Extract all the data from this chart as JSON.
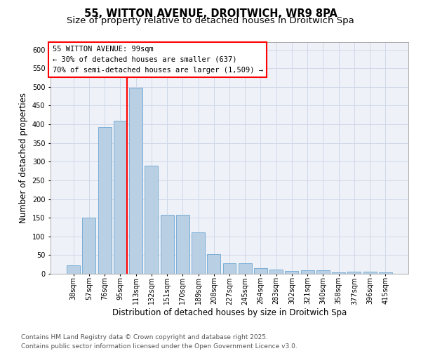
{
  "title_line1": "55, WITTON AVENUE, DROITWICH, WR9 8PA",
  "title_line2": "Size of property relative to detached houses in Droitwich Spa",
  "xlabel": "Distribution of detached houses by size in Droitwich Spa",
  "ylabel": "Number of detached properties",
  "categories": [
    "38sqm",
    "57sqm",
    "76sqm",
    "95sqm",
    "113sqm",
    "132sqm",
    "151sqm",
    "170sqm",
    "189sqm",
    "208sqm",
    "227sqm",
    "245sqm",
    "264sqm",
    "283sqm",
    "302sqm",
    "321sqm",
    "340sqm",
    "358sqm",
    "377sqm",
    "396sqm",
    "415sqm"
  ],
  "values": [
    22,
    150,
    393,
    410,
    498,
    290,
    158,
    158,
    110,
    53,
    28,
    28,
    15,
    11,
    7,
    9,
    10,
    4,
    6,
    5,
    4
  ],
  "bar_color": "#b8cfe4",
  "bar_edge_color": "#7aaed6",
  "grid_color": "#d0d8e8",
  "background_color": "#eef2f8",
  "annotation_text": "55 WITTON AVENUE: 99sqm\n← 30% of detached houses are smaller (637)\n70% of semi-detached houses are larger (1,509) →",
  "vline_color": "red",
  "annotation_box_color": "white",
  "annotation_box_edge": "red",
  "ylim": [
    0,
    620
  ],
  "yticks": [
    0,
    50,
    100,
    150,
    200,
    250,
    300,
    350,
    400,
    450,
    500,
    550,
    600
  ],
  "footer_text": "Contains HM Land Registry data © Crown copyright and database right 2025.\nContains public sector information licensed under the Open Government Licence v3.0.",
  "title_fontsize": 10.5,
  "subtitle_fontsize": 9.5,
  "axis_label_fontsize": 8.5,
  "tick_fontsize": 7,
  "annotation_fontsize": 7.5,
  "footer_fontsize": 6.5
}
